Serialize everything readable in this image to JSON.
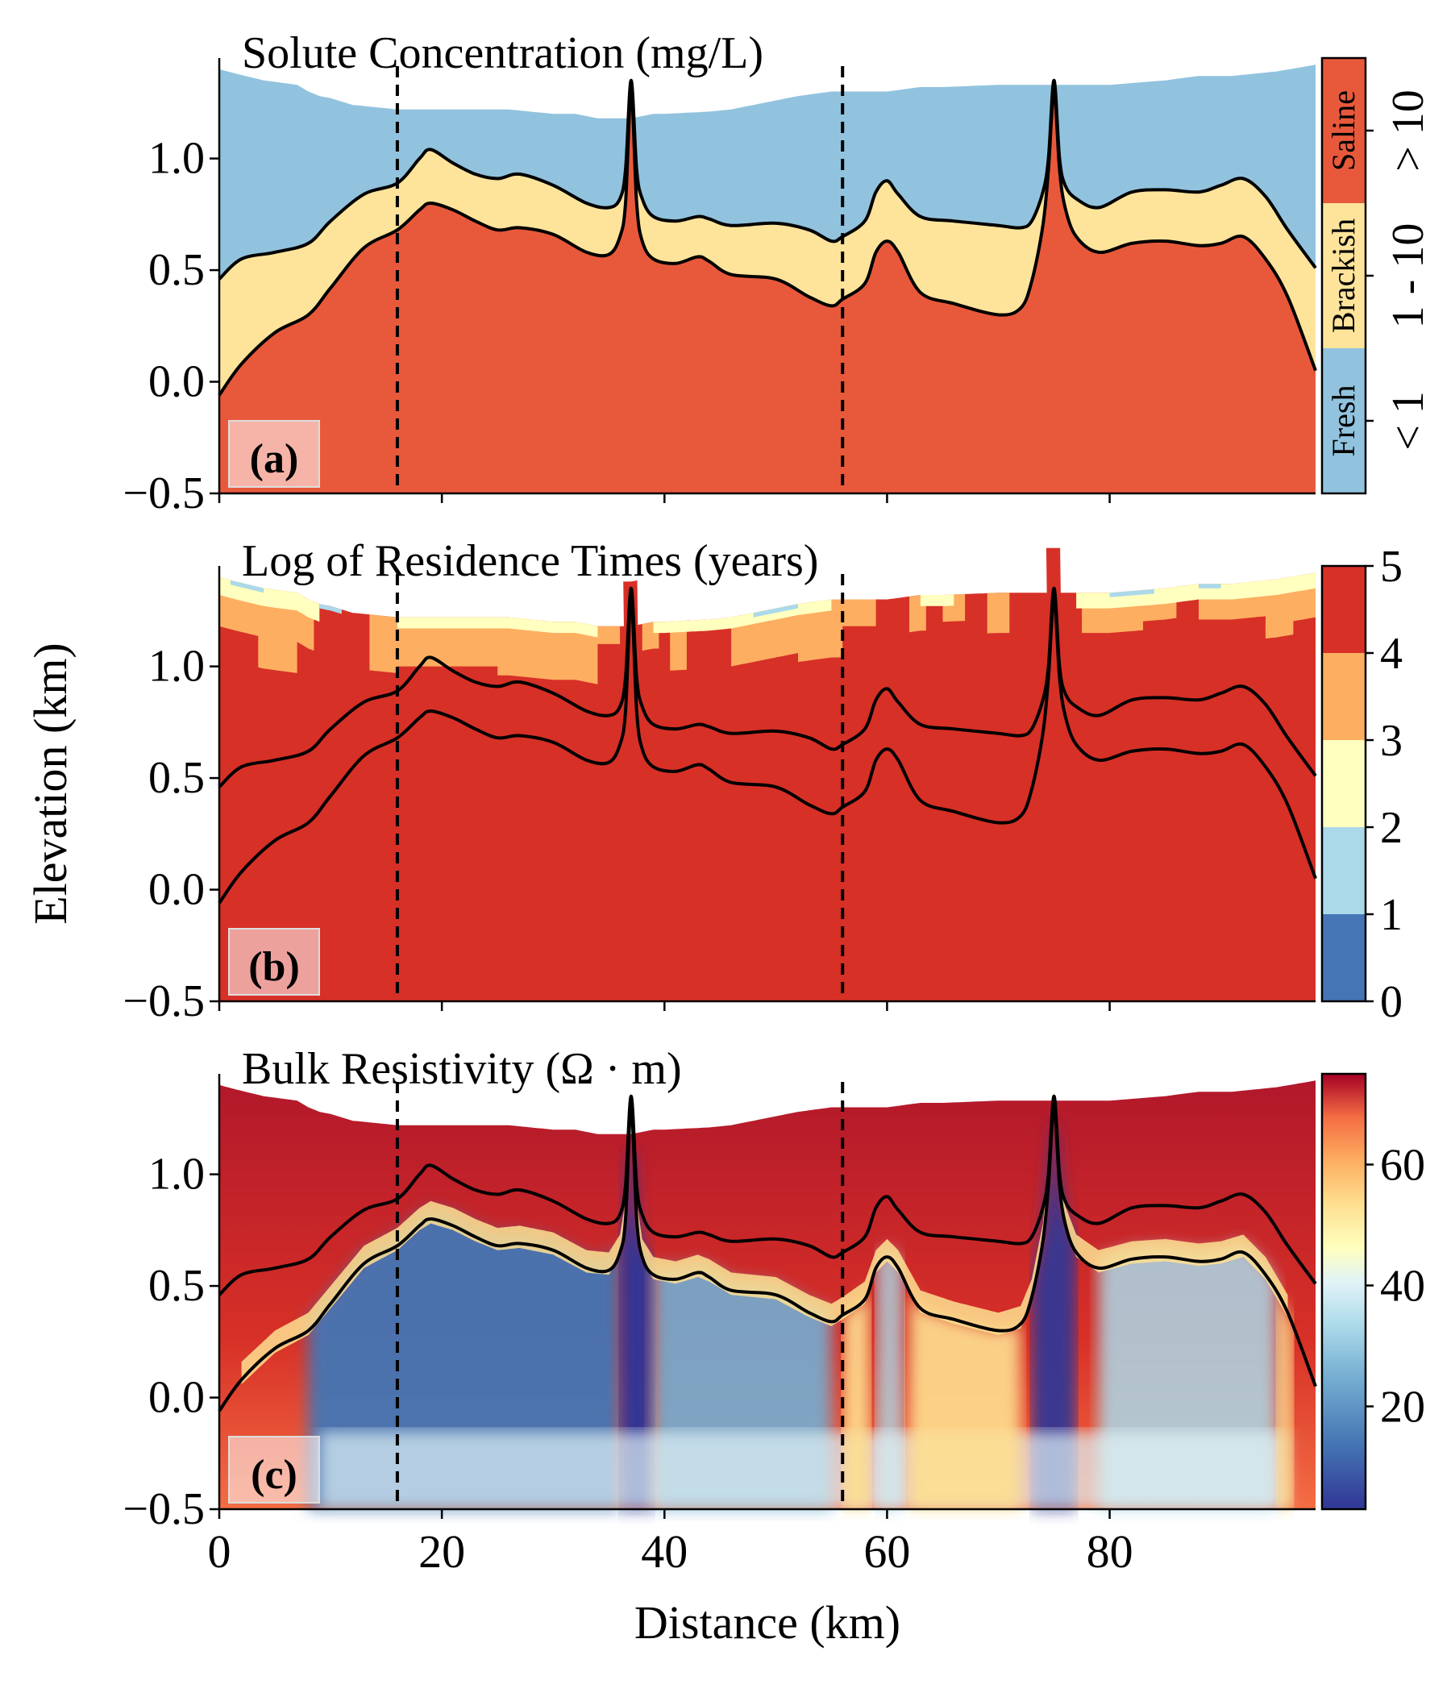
{
  "figure": {
    "ylabel": "Elevation (km)",
    "xlabel": "Distance (km)",
    "x_ticks": [
      "0",
      "20",
      "40",
      "60",
      "80"
    ],
    "y_ticks": [
      "−0.5",
      "0.0",
      "0.5",
      "1.0"
    ]
  },
  "chart_data": [
    {
      "type": "area",
      "panel": "a",
      "panel_label": "(a)",
      "title": "Solute Concentration (mg/L)",
      "xlabel": "Distance (km)",
      "ylabel": "Elevation (km)",
      "xlim": [
        0,
        98.5
      ],
      "ylim": [
        -0.5,
        1.45
      ],
      "dashed_x": [
        16,
        56
      ],
      "classes": [
        {
          "name": "Fresh",
          "range": "< 1",
          "color": "#91c3de"
        },
        {
          "name": "Brackish",
          "range": "1 - 10",
          "color": "#fde49a"
        },
        {
          "name": "Saline",
          "range": "> 10",
          "color": "#e8593c"
        }
      ],
      "colorbar_ticks": [
        "< 1",
        "1 - 10",
        "> 10"
      ]
    },
    {
      "type": "heatmap",
      "panel": "b",
      "panel_label": "(b)",
      "title": "Log of Residence Times (years)",
      "xlabel": "Distance (km)",
      "ylabel": "Elevation (km)",
      "xlim": [
        0,
        98.5
      ],
      "ylim": [
        -0.5,
        1.45
      ],
      "dashed_x": [
        16,
        56
      ],
      "colorbar_bins": [
        {
          "range": [
            0,
            1
          ],
          "color": "#4575b4"
        },
        {
          "range": [
            1,
            2
          ],
          "color": "#abd9e9"
        },
        {
          "range": [
            2,
            3
          ],
          "color": "#ffffbf"
        },
        {
          "range": [
            3,
            4
          ],
          "color": "#fdae61"
        },
        {
          "range": [
            4,
            5
          ],
          "color": "#d73027"
        }
      ],
      "colorbar_ticks": [
        "0",
        "1",
        "2",
        "3",
        "4",
        "5"
      ]
    },
    {
      "type": "heatmap",
      "panel": "c",
      "panel_label": "(c)",
      "title": "Bulk Resistivity (Ω · m)",
      "xlabel": "Distance (km)",
      "ylabel": "Elevation (km)",
      "xlim": [
        0,
        98.5
      ],
      "ylim": [
        -0.5,
        1.45
      ],
      "dashed_x": [
        16,
        56
      ],
      "colorbar_range": [
        3,
        75
      ],
      "colorbar_ticks": [
        "20",
        "40",
        "60"
      ],
      "colorbar_tick_values": [
        20,
        40,
        60
      ]
    }
  ],
  "profiles": {
    "x": [
      0,
      2,
      5,
      8,
      10,
      13,
      16,
      18,
      19,
      21,
      23,
      25,
      27,
      30,
      33,
      35,
      36,
      36.5,
      37,
      37.5,
      38,
      39,
      41,
      43,
      44,
      46,
      50,
      53,
      55,
      56,
      58,
      59,
      60,
      61,
      63,
      66,
      70,
      72,
      73,
      74,
      74.5,
      75,
      75.5,
      76,
      77,
      79,
      82,
      85,
      88,
      90,
      92,
      94,
      96,
      98.5
    ],
    "upper": [
      0.46,
      0.55,
      0.58,
      0.62,
      0.72,
      0.84,
      0.89,
      1.0,
      1.04,
      0.98,
      0.93,
      0.91,
      0.93,
      0.88,
      0.8,
      0.78,
      0.82,
      0.95,
      1.35,
      0.95,
      0.82,
      0.74,
      0.72,
      0.74,
      0.73,
      0.7,
      0.71,
      0.68,
      0.63,
      0.65,
      0.72,
      0.85,
      0.9,
      0.84,
      0.74,
      0.72,
      0.7,
      0.69,
      0.72,
      0.85,
      1.0,
      1.35,
      1.0,
      0.88,
      0.82,
      0.78,
      0.85,
      0.86,
      0.85,
      0.88,
      0.91,
      0.83,
      0.68,
      0.51
    ],
    "lower": [
      -0.06,
      0.08,
      0.22,
      0.3,
      0.42,
      0.6,
      0.68,
      0.77,
      0.8,
      0.77,
      0.72,
      0.68,
      0.69,
      0.66,
      0.58,
      0.57,
      0.65,
      0.8,
      1.3,
      0.8,
      0.63,
      0.55,
      0.53,
      0.56,
      0.54,
      0.48,
      0.46,
      0.38,
      0.34,
      0.37,
      0.44,
      0.58,
      0.63,
      0.58,
      0.4,
      0.35,
      0.3,
      0.33,
      0.45,
      0.7,
      0.95,
      1.3,
      0.95,
      0.78,
      0.65,
      0.58,
      0.62,
      0.63,
      0.61,
      0.62,
      0.65,
      0.55,
      0.38,
      0.05
    ],
    "surface_x": [
      0,
      1.5,
      4,
      7,
      8,
      9,
      10,
      12,
      14,
      16,
      18,
      20,
      26,
      30,
      32,
      34,
      35,
      37,
      39,
      40,
      44,
      46,
      48,
      50,
      52,
      55,
      60,
      63,
      65,
      70,
      75,
      80,
      85,
      88,
      91,
      93,
      95,
      98.5
    ],
    "surface_y": [
      1.4,
      1.38,
      1.35,
      1.33,
      1.3,
      1.28,
      1.27,
      1.24,
      1.23,
      1.22,
      1.22,
      1.22,
      1.22,
      1.2,
      1.2,
      1.18,
      1.18,
      1.18,
      1.2,
      1.2,
      1.21,
      1.22,
      1.24,
      1.26,
      1.28,
      1.3,
      1.3,
      1.32,
      1.32,
      1.33,
      1.33,
      1.33,
      1.35,
      1.37,
      1.37,
      1.38,
      1.39,
      1.42
    ]
  }
}
